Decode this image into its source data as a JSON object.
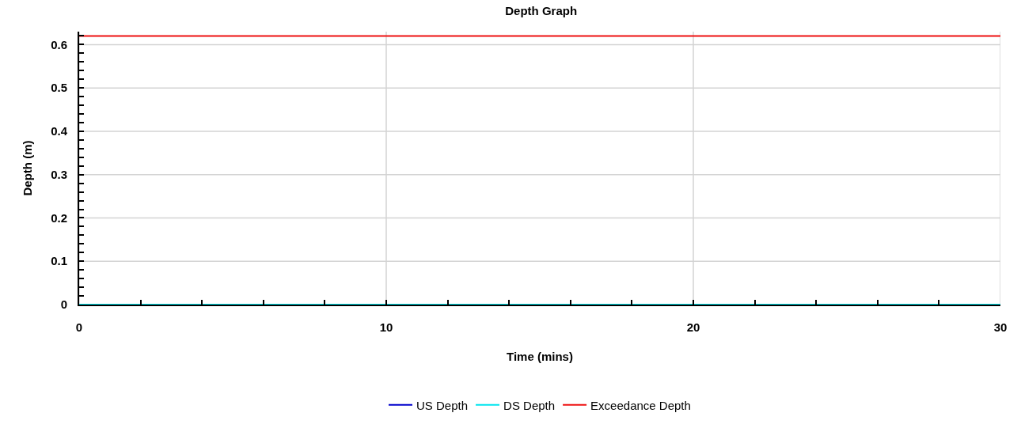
{
  "chart_data": {
    "type": "line",
    "title": "Depth Graph",
    "xlabel": "Time (mins)",
    "ylabel": "Depth (m)",
    "x": [
      0,
      30
    ],
    "series": [
      {
        "name": "US Depth",
        "color": "#0000cc",
        "values": [
          null,
          null
        ]
      },
      {
        "name": "DS Depth",
        "color": "#00e5ee",
        "values": [
          0,
          0
        ]
      },
      {
        "name": "Exceedance Depth",
        "color": "#ee1111",
        "values": [
          0.62,
          0.62
        ]
      }
    ],
    "xlim": [
      0,
      30
    ],
    "xticks": [
      0,
      {
        "value": 2,
        "label": null
      },
      {
        "value": 4,
        "label": null
      },
      {
        "value": 6,
        "label": null
      },
      {
        "value": 8,
        "label": null
      },
      10,
      {
        "value": 12,
        "label": null
      },
      {
        "value": 14,
        "label": null
      },
      {
        "value": 16,
        "label": null
      },
      {
        "value": 18,
        "label": null
      },
      20,
      {
        "value": 22,
        "label": null
      },
      {
        "value": 24,
        "label": null
      },
      {
        "value": 26,
        "label": null
      },
      {
        "value": 28,
        "label": null
      },
      30
    ],
    "ylim": [
      0,
      0.63
    ],
    "yticks": [
      0,
      {
        "value": 0.02,
        "label": null
      },
      {
        "value": 0.04,
        "label": null
      },
      {
        "value": 0.06,
        "label": null
      },
      {
        "value": 0.08,
        "label": null
      },
      0.1,
      {
        "value": 0.12,
        "label": null
      },
      {
        "value": 0.14,
        "label": null
      },
      {
        "value": 0.16,
        "label": null
      },
      {
        "value": 0.18,
        "label": null
      },
      0.2,
      {
        "value": 0.22,
        "label": null
      },
      {
        "value": 0.24,
        "label": null
      },
      {
        "value": 0.26,
        "label": null
      },
      {
        "value": 0.28,
        "label": null
      },
      0.3,
      {
        "value": 0.32,
        "label": null
      },
      {
        "value": 0.34,
        "label": null
      },
      {
        "value": 0.36,
        "label": null
      },
      {
        "value": 0.38,
        "label": null
      },
      0.4,
      {
        "value": 0.42,
        "label": null
      },
      {
        "value": 0.44,
        "label": null
      },
      {
        "value": 0.46,
        "label": null
      },
      {
        "value": 0.48,
        "label": null
      },
      0.5,
      {
        "value": 0.52,
        "label": null
      },
      {
        "value": 0.54,
        "label": null
      },
      {
        "value": 0.56,
        "label": null
      },
      {
        "value": 0.58,
        "label": null
      },
      0.6,
      {
        "value": 0.62,
        "label": null
      }
    ],
    "grid": true,
    "legend": "bottom",
    "marker": "none",
    "line_style": "solid"
  }
}
